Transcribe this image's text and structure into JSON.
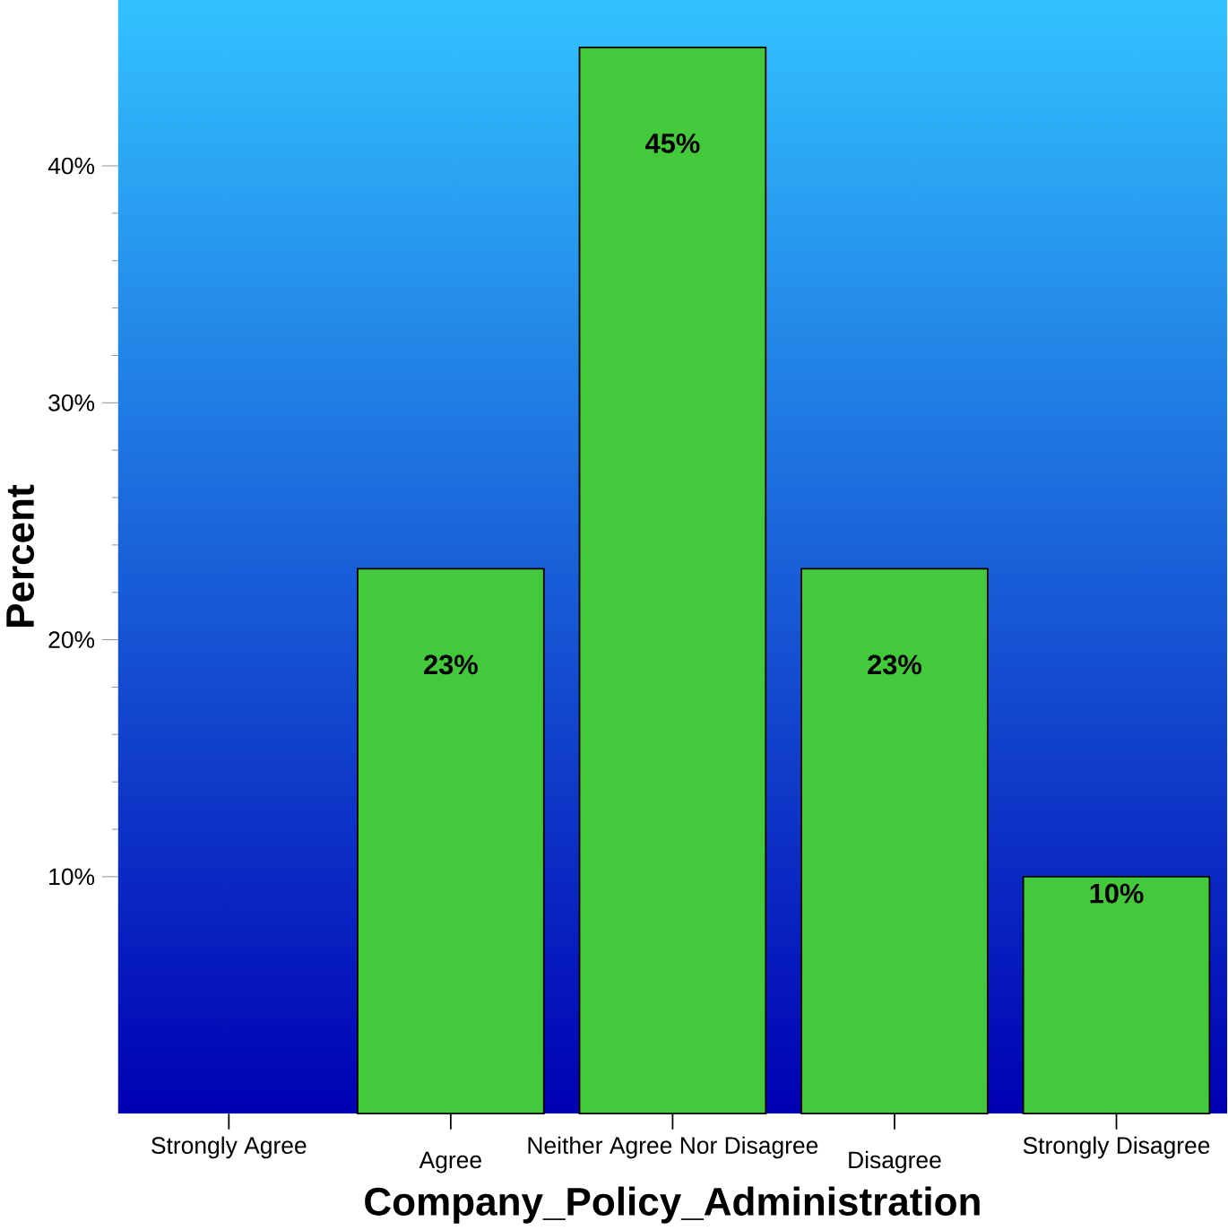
{
  "chart_data": {
    "type": "bar",
    "xlabel": "Company_Policy_Administration",
    "ylabel": "Percent",
    "categories": [
      "Strongly Agree",
      "Agree",
      "Neither Agree Nor Disagree",
      "Disagree",
      "Strongly Disagree"
    ],
    "values": [
      0,
      23,
      45,
      23,
      10
    ],
    "value_labels": [
      null,
      "23%",
      "45%",
      "23%",
      "10%"
    ],
    "color": "#44c83c",
    "ylim": [
      0,
      47
    ],
    "yticks": [
      {
        "value": 10,
        "label": "10%"
      },
      {
        "value": 20,
        "label": "20%"
      },
      {
        "value": 30,
        "label": "30%"
      },
      {
        "value": 40,
        "label": "40%"
      }
    ],
    "grid": false
  }
}
